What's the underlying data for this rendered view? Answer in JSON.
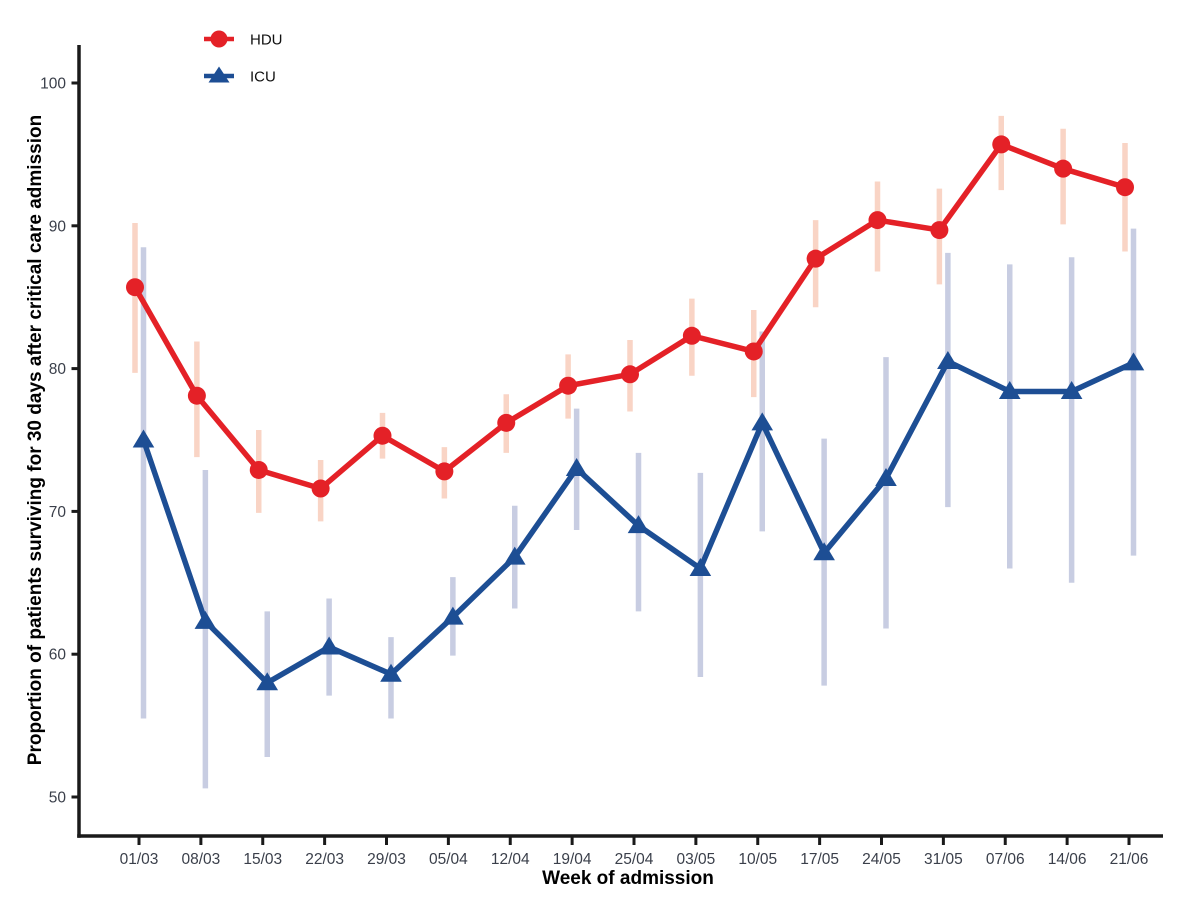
{
  "chart_data": {
    "type": "line",
    "title": "",
    "xlabel": "Week of admission",
    "ylabel": "Proportion of patients surviving for 30 days after critical care admission",
    "categories": [
      "01/03",
      "08/03",
      "15/03",
      "22/03",
      "29/03",
      "05/04",
      "12/04",
      "19/04",
      "25/04",
      "03/05",
      "10/05",
      "17/05",
      "24/05",
      "31/05",
      "07/06",
      "14/06",
      "21/06"
    ],
    "y_ticks": [
      50,
      60,
      70,
      80,
      90,
      100
    ],
    "ylim": [
      47,
      103
    ],
    "grid": false,
    "legend_position": "top-left-inside",
    "axis_color": "#1a1a1a",
    "tick_label_color": "#3a3f4a",
    "series": [
      {
        "name": "HDU",
        "marker": "circle",
        "color": "#e42127",
        "ci_color": "#f9d4c5",
        "values": [
          85.7,
          78.1,
          72.9,
          71.6,
          75.3,
          72.8,
          76.2,
          78.8,
          79.6,
          82.3,
          81.2,
          87.7,
          90.4,
          89.7,
          95.7,
          94.0,
          92.7
        ],
        "ci_lower": [
          79.7,
          73.8,
          69.9,
          69.3,
          73.7,
          70.9,
          74.1,
          76.5,
          77.0,
          79.5,
          78.0,
          84.3,
          86.8,
          85.9,
          92.5,
          90.1,
          88.2
        ],
        "ci_upper": [
          90.2,
          81.9,
          75.7,
          73.6,
          76.9,
          74.5,
          78.2,
          81.0,
          82.0,
          84.9,
          84.1,
          90.4,
          93.1,
          92.6,
          97.7,
          96.8,
          95.8
        ]
      },
      {
        "name": "ICU",
        "marker": "triangle",
        "color": "#1d4e94",
        "ci_color": "#c8cde2",
        "values": [
          75.0,
          62.3,
          58.0,
          60.5,
          58.6,
          62.6,
          66.8,
          73.0,
          69.0,
          66.0,
          76.2,
          67.1,
          72.3,
          80.5,
          78.4,
          78.4,
          80.4
        ],
        "ci_lower": [
          55.5,
          50.6,
          52.8,
          57.1,
          55.5,
          59.9,
          63.2,
          68.7,
          63.0,
          58.4,
          68.6,
          57.8,
          61.8,
          70.3,
          66.0,
          65.0,
          66.9
        ],
        "ci_upper": [
          88.5,
          72.9,
          63.0,
          63.9,
          61.2,
          65.4,
          70.4,
          77.2,
          74.1,
          72.7,
          82.6,
          75.1,
          80.8,
          88.1,
          87.3,
          87.8,
          89.8
        ]
      }
    ]
  }
}
